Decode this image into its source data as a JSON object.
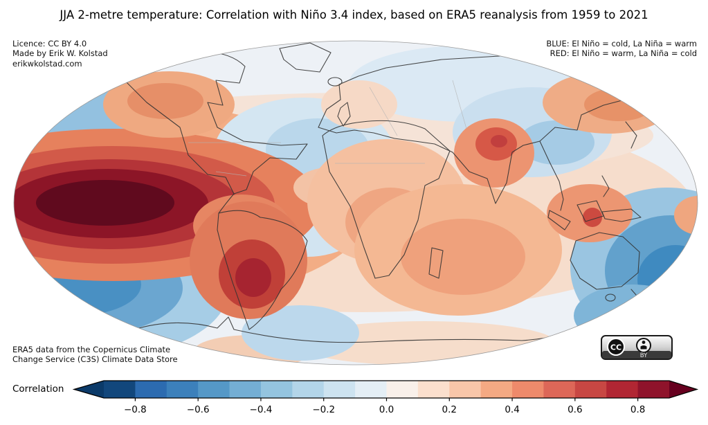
{
  "title": "JJA 2-metre temperature: Correlation with Niño 3.4 index, based on ERA5 reanalysis from 1959 to 2021",
  "annotations": {
    "license": {
      "line1": "Licence: CC BY 4.0",
      "line2": "Made by Erik W. Kolstad",
      "line3": "erikwkolstad.com"
    },
    "legend": {
      "blue_line": "BLUE: El Niño = cold, La Niña = warm",
      "red_line": "RED: El Niño = warm, La Niña = cold"
    },
    "source": {
      "line1": "ERA5 data from the Copernicus Climate",
      "line2": "Change Service (C3S) Climate Data Store"
    },
    "cc_badge": {
      "cc_text": "CC",
      "by_text": "BY"
    }
  },
  "chart_data": {
    "type": "heatmap",
    "subtype": "filled-contour correlation map, elliptical (Mollweide-style) world projection",
    "title": "JJA 2-metre temperature: Correlation with Niño 3.4 index, based on ERA5 reanalysis from 1959 to 2021",
    "period": "1959 to 2021",
    "season": "JJA",
    "variable": "2-metre temperature",
    "index": "Niño 3.4",
    "colorbar": {
      "label": "Correlation",
      "orientation": "horizontal",
      "extend": "both",
      "bin_width": 0.1,
      "range": [
        -0.9,
        0.9
      ],
      "tick_values": [
        -0.8,
        -0.6,
        -0.4,
        -0.2,
        0.0,
        0.2,
        0.4,
        0.6,
        0.8
      ],
      "tick_labels": [
        "−0.8",
        "−0.6",
        "−0.4",
        "−0.2",
        "0.0",
        "0.2",
        "0.4",
        "0.6",
        "0.8"
      ],
      "colors": [
        "#0b3a69",
        "#12477c",
        "#2c6bb0",
        "#3c80bb",
        "#5598c7",
        "#74aed4",
        "#94c4df",
        "#b3d5e9",
        "#cde3f0",
        "#e4eef5",
        "#f9f0ea",
        "#fbdfcd",
        "#f9c6a9",
        "#f4a983",
        "#ee8a6b",
        "#dd6758",
        "#c84743",
        "#b12633",
        "#8f132b",
        "#67001f"
      ]
    },
    "notable_regions": [
      {
        "region": "Equatorial eastern/central Pacific (Niño 3.4 area)",
        "correlation": 0.9
      },
      {
        "region": "Subtropical central South America",
        "correlation": 0.6
      },
      {
        "region": "Northern South America / Amazon",
        "correlation": 0.5
      },
      {
        "region": "India and South Asia",
        "correlation": 0.5
      },
      {
        "region": "Maritime Continent (Borneo region)",
        "correlation": 0.5
      },
      {
        "region": "Tropical Indian Ocean",
        "correlation": 0.3
      },
      {
        "region": "Tropical Africa",
        "correlation": 0.3
      },
      {
        "region": "Alaska / northwest North America",
        "correlation": 0.3
      },
      {
        "region": "Northeast Siberia",
        "correlation": 0.3
      },
      {
        "region": "Southwest Pacific near New Zealand",
        "correlation": -0.6
      },
      {
        "region": "South-central subtropical Pacific",
        "correlation": -0.5
      },
      {
        "region": "Northwest Pacific",
        "correlation": -0.4
      },
      {
        "region": "Eastern North America",
        "correlation": -0.2
      },
      {
        "region": "Central Asia / eastern China",
        "correlation": -0.2
      },
      {
        "region": "North Atlantic",
        "correlation": -0.1
      }
    ]
  }
}
